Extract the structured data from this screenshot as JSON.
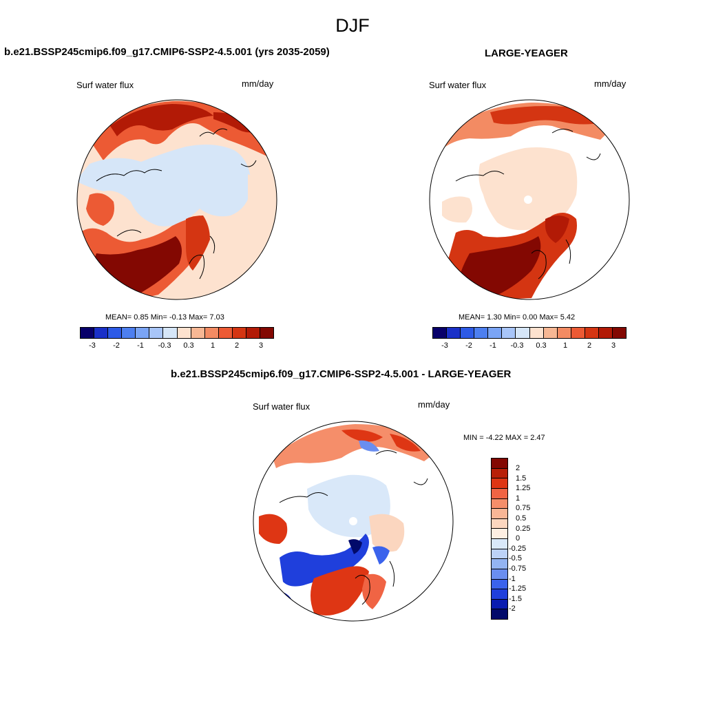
{
  "figure": {
    "season": "DJF",
    "variable": "Surf water flux",
    "units": "mm/day"
  },
  "panels": [
    {
      "id": "case",
      "title": "b.e21.BSSP245cmip6.f09_g17.CMIP6-SSP2-4.5.001 (yrs 2035-2059)",
      "mean_label": "MEAN=",
      "mean": "0.85",
      "min_label": "Min=",
      "min": "-0.13",
      "max_label": "Max=",
      "max": "7.03"
    },
    {
      "id": "obs",
      "title": "LARGE-YEAGER",
      "mean_label": "MEAN=",
      "mean": "1.30",
      "min_label": "Min=",
      "min": "0.00",
      "max_label": "Max=",
      "max": "5.42"
    },
    {
      "id": "diff",
      "title": "b.e21.BSSP245cmip6.f09_g17.CMIP6-SSP2-4.5.001 - LARGE-YEAGER",
      "minmax_text": "MIN =  -4.22 MAX =   2.47"
    }
  ],
  "colorbar_main": {
    "colors": [
      "#08006a",
      "#1a30c8",
      "#2d5ae6",
      "#4d7ff0",
      "#7aa4f5",
      "#a8c5f8",
      "#d6e6f8",
      "#fde2cf",
      "#f7b794",
      "#f38b63",
      "#ec5a34",
      "#d43512",
      "#b21a06",
      "#830802"
    ],
    "tick_labels": [
      "-3",
      "-2",
      "-1",
      "-0.3",
      "0.3",
      "1",
      "2",
      "3"
    ]
  },
  "colorbar_diff": {
    "colors": [
      "#830802",
      "#b82008",
      "#de3614",
      "#f06444",
      "#f58e6a",
      "#f8b696",
      "#fbd6bf",
      "#fdeee2",
      "#d9e8f9",
      "#bcd2f7",
      "#93b4f2",
      "#6a8ef0",
      "#3b63ec",
      "#1f3fdc",
      "#0a1cb0",
      "#020a6a"
    ],
    "tick_labels": [
      "2",
      "1.5",
      "1.25",
      "1",
      "0.75",
      "0.5",
      "0.25",
      "0",
      "-0.25",
      "-0.5",
      "-0.75",
      "-1",
      "-1.25",
      "-1.5",
      "-2"
    ]
  }
}
